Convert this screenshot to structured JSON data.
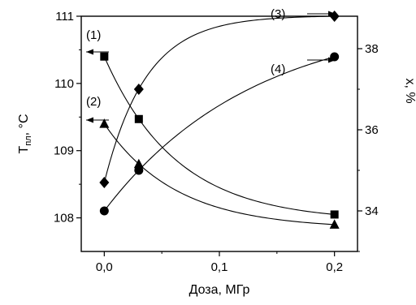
{
  "chart_data": {
    "type": "scatter",
    "xlabel": "Доза, МГр",
    "ylabel_left_main": "T",
    "ylabel_left_sub": "пл",
    "ylabel_left_unit": ", °C",
    "ylabel_right": "x, %",
    "xlim": [
      -0.02,
      0.22
    ],
    "ylim_left": [
      107.5,
      111
    ],
    "ylim_right": [
      33.0,
      38.8
    ],
    "xticks": [
      0.0,
      0.1,
      0.2
    ],
    "xtick_labels": [
      "0,0",
      "0,1",
      "0,2"
    ],
    "yticks_left": [
      108,
      109,
      110,
      111
    ],
    "ytick_labels_left": [
      "108",
      "109",
      "110",
      "111"
    ],
    "yticks_right": [
      34,
      36,
      38
    ],
    "ytick_labels_right": [
      "34",
      "36",
      "38"
    ],
    "grid": false,
    "series": [
      {
        "label": "(1)",
        "axis": "left",
        "marker": "square",
        "arrow": "left",
        "x": [
          0.0,
          0.03,
          0.2
        ],
        "y": [
          110.4,
          109.47,
          108.05
        ]
      },
      {
        "label": "(2)",
        "axis": "left",
        "marker": "triangle",
        "arrow": "left",
        "x": [
          0.0,
          0.03,
          0.2
        ],
        "y": [
          109.4,
          108.8,
          107.9
        ]
      },
      {
        "label": "(3)",
        "axis": "right",
        "marker": "diamond",
        "arrow": "right",
        "x": [
          0.0,
          0.03,
          0.2
        ],
        "y": [
          34.7,
          37.0,
          38.8
        ]
      },
      {
        "label": "(4)",
        "axis": "right",
        "marker": "circle",
        "arrow": "right",
        "x": [
          0.0,
          0.03,
          0.2
        ],
        "y": [
          34.0,
          35.0,
          37.8
        ]
      }
    ]
  }
}
